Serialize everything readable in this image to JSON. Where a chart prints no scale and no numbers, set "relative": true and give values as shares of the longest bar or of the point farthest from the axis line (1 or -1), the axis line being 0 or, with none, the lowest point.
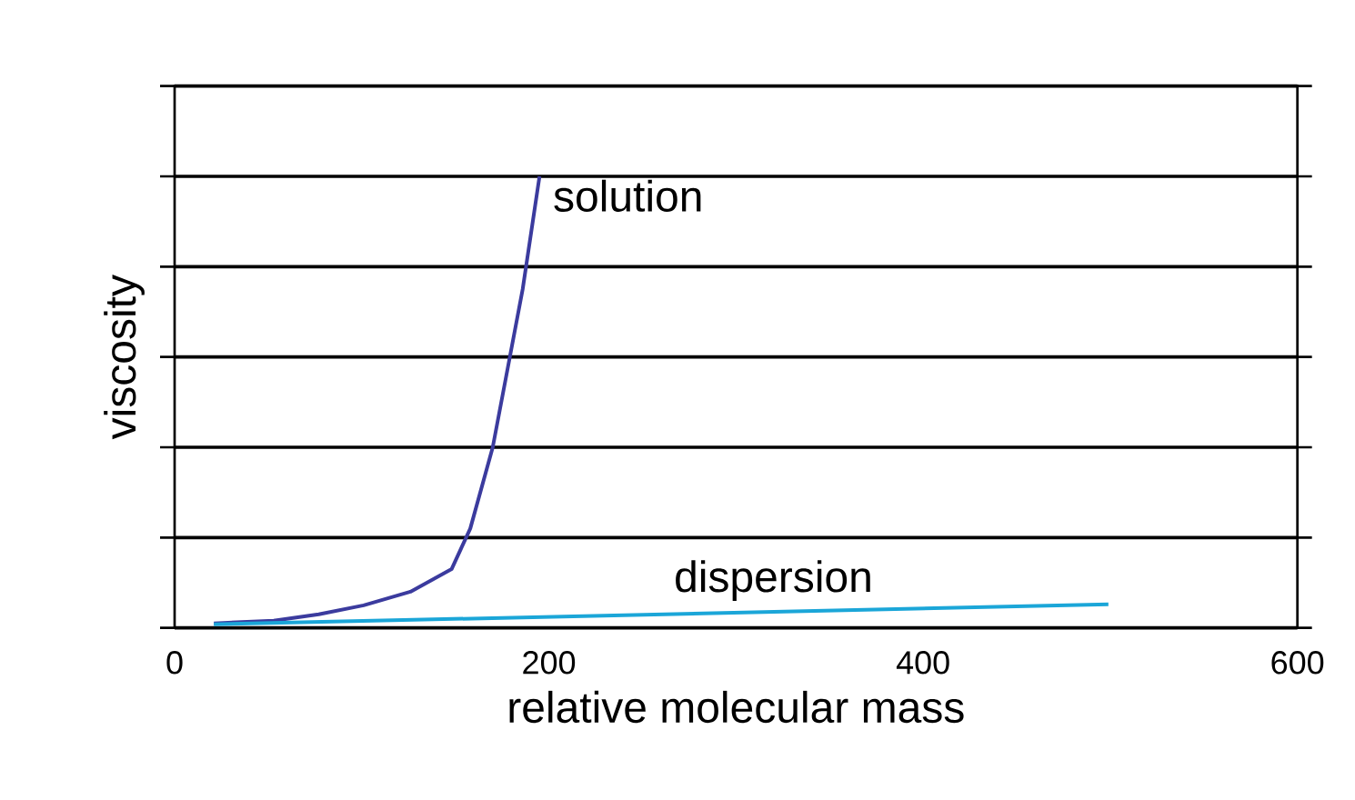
{
  "chart_data": {
    "type": "line",
    "xlabel": "relative molecular mass",
    "ylabel": "viscosity",
    "relative": true,
    "xlim": [
      0,
      600
    ],
    "xticks": [
      0,
      200,
      400,
      600
    ],
    "grid": "y",
    "series": [
      {
        "name": "solution",
        "color": "#3b3b9e",
        "x": [
          21,
          53,
          77,
          101,
          126,
          148,
          158,
          170,
          186,
          195
        ],
        "values": [
          0.01,
          0.016,
          0.03,
          0.05,
          0.08,
          0.13,
          0.22,
          0.4,
          0.75,
          1.0
        ]
      },
      {
        "name": "dispersion",
        "color": "#1ba6d8",
        "x": [
          21,
          499
        ],
        "values": [
          0.008,
          0.052
        ]
      }
    ]
  }
}
